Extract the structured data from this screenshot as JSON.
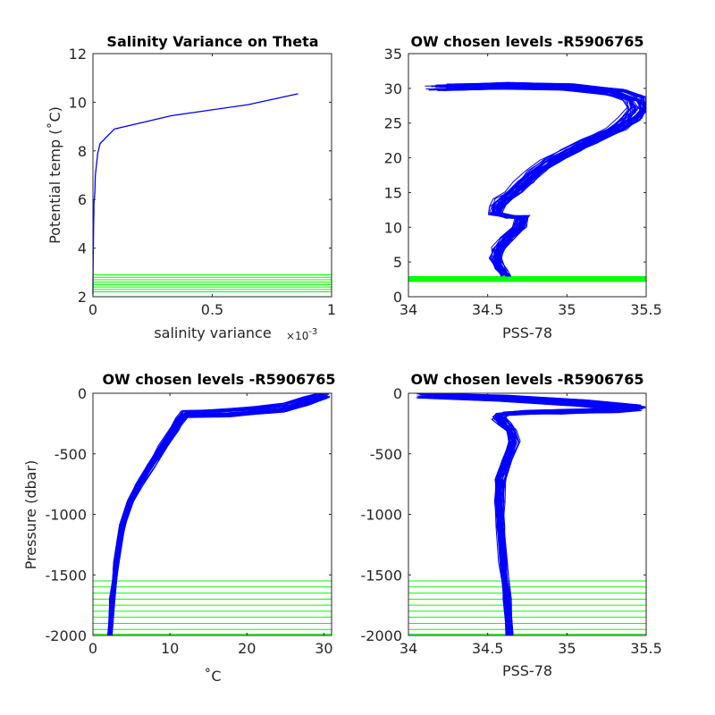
{
  "figure": {
    "background": "#ffffff",
    "colors": {
      "profile": "#0000ff",
      "chosen_levels": "#00ff00",
      "axes": "#262626"
    }
  },
  "chart_data": [
    {
      "type": "line",
      "title": "Salinity Variance on Theta",
      "xlabel": "salinity variance",
      "ylabel": "Potential temp (˚C)",
      "x_exponent_label": "×10",
      "x_exponent_power": "-3",
      "xlim": [
        0,
        1
      ],
      "ylim": [
        2,
        12
      ],
      "x_scale": 0.001,
      "xticks": [
        0,
        0.5,
        1
      ],
      "xtick_labels": [
        "0",
        "0.5",
        "1"
      ],
      "yticks": [
        2,
        4,
        6,
        8,
        10,
        12
      ],
      "ytick_labels": [
        "2",
        "4",
        "6",
        "8",
        "10",
        "12"
      ],
      "series": [
        {
          "color": "#0000ff",
          "x": [
            0.0,
            0.0,
            0.001,
            0.002,
            0.003,
            0.004,
            0.004,
            0.005,
            0.006,
            0.008,
            0.01,
            0.02,
            0.03,
            0.09,
            0.33,
            0.65,
            0.86
          ],
          "y": [
            2.1,
            2.5,
            3.5,
            4.3,
            5.0,
            5.5,
            5.8,
            6.0,
            6.0,
            6.3,
            7.0,
            7.9,
            8.3,
            8.9,
            9.45,
            9.9,
            10.35
          ]
        }
      ],
      "hlines": {
        "color": "#00ff00",
        "values": [
          2.2,
          2.3,
          2.4,
          2.5,
          2.6,
          2.7,
          2.8,
          2.9
        ]
      }
    },
    {
      "type": "line",
      "title": "OW chosen levels -R5906765",
      "xlabel": "PSS-78",
      "ylabel": "",
      "xlim": [
        34,
        35.5
      ],
      "ylim": [
        0,
        35
      ],
      "xticks": [
        34,
        34.5,
        35,
        35.5
      ],
      "xtick_labels": [
        "34",
        "34.5",
        "35",
        "35.5"
      ],
      "yticks": [
        0,
        5,
        10,
        15,
        20,
        25,
        30,
        35
      ],
      "ytick_labels": [
        "0",
        "5",
        "10",
        "15",
        "20",
        "25",
        "30",
        "35"
      ],
      "series_template": {
        "color": "#0000ff",
        "x": [
          34.62,
          34.58,
          34.55,
          34.57,
          34.63,
          34.7,
          34.72,
          34.63,
          34.55,
          34.56,
          34.6,
          34.66,
          34.73,
          34.8,
          34.9,
          35.02,
          35.15,
          35.3,
          35.4,
          35.46,
          35.43,
          35.3,
          35.0,
          34.6,
          34.2
        ],
        "y": [
          3.0,
          4.0,
          5.5,
          7.0,
          8.5,
          10.0,
          11.5,
          11.5,
          12.0,
          13.0,
          14.0,
          15.0,
          16.5,
          18.0,
          19.5,
          21.0,
          22.5,
          24.0,
          25.5,
          27.0,
          28.5,
          29.5,
          30.2,
          30.4,
          30.1
        ],
        "ensemble": {
          "count": 40,
          "x_spread": 0.07,
          "y_spread": 0.5
        }
      },
      "hlines": {
        "color": "#00ff00",
        "values": [
          2.2,
          2.3,
          2.4,
          2.5,
          2.6,
          2.7,
          2.8,
          2.9
        ]
      }
    },
    {
      "type": "line",
      "title": "OW chosen levels -R5906765",
      "xlabel": "˚C",
      "ylabel": "Pressure (dbar)",
      "xlim": [
        0,
        31
      ],
      "ylim": [
        -2000,
        0
      ],
      "xticks": [
        0,
        10,
        20,
        30
      ],
      "xtick_labels": [
        "0",
        "10",
        "20",
        "30"
      ],
      "yticks": [
        -2000,
        -1500,
        -1000,
        -500,
        0
      ],
      "ytick_labels": [
        "-2000",
        "-1500",
        "-1000",
        "-500",
        "0"
      ],
      "series_template": {
        "color": "#0000ff",
        "x": [
          2.2,
          2.5,
          3.0,
          3.8,
          4.8,
          6.0,
          7.5,
          9.0,
          10.5,
          11.3,
          12.0,
          18.0,
          25.0,
          28.0,
          30.0
        ],
        "y": [
          -2000,
          -1700,
          -1400,
          -1100,
          -900,
          -750,
          -600,
          -450,
          -300,
          -220,
          -170,
          -160,
          -120,
          -60,
          -10
        ],
        "ensemble": {
          "count": 40,
          "x_spread": 0.6,
          "y_spread": 40
        }
      },
      "hlines": {
        "color": "#00ff00",
        "values": [
          -1550,
          -1600,
          -1650,
          -1700,
          -1750,
          -1800,
          -1850,
          -1900,
          -1950,
          -1990
        ]
      }
    },
    {
      "type": "line",
      "title": "OW chosen levels -R5906765",
      "xlabel": "PSS-78",
      "ylabel": "",
      "xlim": [
        34,
        35.5
      ],
      "ylim": [
        -2000,
        0
      ],
      "xticks": [
        34,
        34.5,
        35,
        35.5
      ],
      "xtick_labels": [
        "34",
        "34.5",
        "35",
        "35.5"
      ],
      "yticks": [
        -2000,
        -1500,
        -1000,
        -500,
        0
      ],
      "ytick_labels": [
        "-2000",
        "-1500",
        "-1000",
        "-500",
        "0"
      ],
      "series_template": {
        "color": "#0000ff",
        "x": [
          34.64,
          34.62,
          34.6,
          34.58,
          34.57,
          34.58,
          34.62,
          34.66,
          34.64,
          34.6,
          34.57,
          34.6,
          34.75,
          35.0,
          35.3,
          35.45,
          35.1,
          34.6,
          34.1
        ],
        "y": [
          -2000,
          -1700,
          -1400,
          -1100,
          -900,
          -700,
          -550,
          -400,
          -300,
          -250,
          -200,
          -170,
          -155,
          -150,
          -140,
          -120,
          -80,
          -40,
          -10
        ],
        "ensemble": {
          "count": 40,
          "x_spread": 0.05,
          "y_spread": 25
        }
      },
      "hlines": {
        "color": "#00ff00",
        "values": [
          -1550,
          -1600,
          -1650,
          -1700,
          -1750,
          -1800,
          -1850,
          -1900,
          -1950,
          -1990
        ]
      }
    }
  ]
}
